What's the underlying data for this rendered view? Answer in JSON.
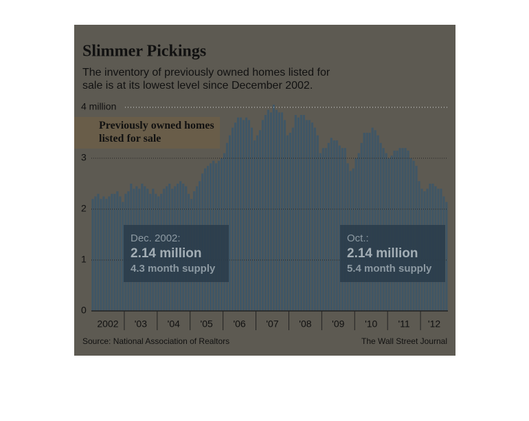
{
  "chart_data": {
    "type": "bar",
    "title": "Slimmer Pickings",
    "subtitle": "The inventory of previously owned homes listed for sale is at its lowest level since December 2002.",
    "series_label": "Previously owned homes listed for sale",
    "color": "#3f5666",
    "ylim": [
      0,
      4
    ],
    "yticks": [
      0,
      1,
      2,
      3,
      {
        "value": 4,
        "label": "4 million"
      }
    ],
    "grid": true,
    "groups": [
      {
        "label": "2002",
        "values": [
          2.2,
          2.25,
          2.3,
          2.2,
          2.25,
          2.2,
          2.25,
          2.3,
          2.3,
          2.35,
          2.25,
          2.14
        ]
      },
      {
        "label": "'03",
        "values": [
          2.3,
          2.35,
          2.5,
          2.4,
          2.45,
          2.4,
          2.5,
          2.45,
          2.4,
          2.3,
          2.4,
          2.3
        ]
      },
      {
        "label": "'04",
        "values": [
          2.25,
          2.3,
          2.4,
          2.45,
          2.5,
          2.4,
          2.45,
          2.5,
          2.55,
          2.5,
          2.45,
          2.3
        ]
      },
      {
        "label": "'05",
        "values": [
          2.2,
          2.35,
          2.45,
          2.55,
          2.7,
          2.8,
          2.85,
          2.9,
          2.95,
          2.9,
          2.95,
          3.0
        ]
      },
      {
        "label": "'06",
        "values": [
          3.1,
          3.3,
          3.45,
          3.6,
          3.7,
          3.8,
          3.8,
          3.75,
          3.8,
          3.75,
          3.6,
          3.35
        ]
      },
      {
        "label": "'07",
        "values": [
          3.45,
          3.55,
          3.75,
          3.85,
          3.95,
          3.9,
          4.05,
          3.95,
          3.9,
          3.9,
          3.75,
          3.45
        ]
      },
      {
        "label": "'08",
        "values": [
          3.5,
          3.6,
          3.85,
          3.8,
          3.85,
          3.85,
          3.75,
          3.75,
          3.7,
          3.6,
          3.45,
          3.1
        ]
      },
      {
        "label": "'09",
        "values": [
          3.2,
          3.2,
          3.3,
          3.4,
          3.35,
          3.35,
          3.25,
          3.2,
          3.2,
          2.9,
          2.75,
          2.8
        ]
      },
      {
        "label": "'10",
        "values": [
          3.0,
          3.1,
          3.3,
          3.5,
          3.5,
          3.5,
          3.6,
          3.55,
          3.45,
          3.3,
          3.2,
          3.1
        ]
      },
      {
        "label": "'11",
        "values": [
          3.0,
          3.05,
          3.15,
          3.15,
          3.2,
          3.2,
          3.2,
          3.15,
          3.0,
          2.95,
          2.85,
          2.55
        ]
      },
      {
        "label": "'12",
        "values": [
          2.4,
          2.35,
          2.4,
          2.5,
          2.5,
          2.45,
          2.4,
          2.4,
          2.25,
          2.14
        ]
      }
    ],
    "annotations": [
      {
        "date": "Dec. 2002:",
        "value": "2.14 million",
        "supply": "4.3 month supply"
      },
      {
        "date": "Oct.:",
        "value": "2.14 million",
        "supply": "5.4 month supply"
      }
    ],
    "source": "Source: National Association of Realtors",
    "credit": "The Wall Street Journal"
  }
}
